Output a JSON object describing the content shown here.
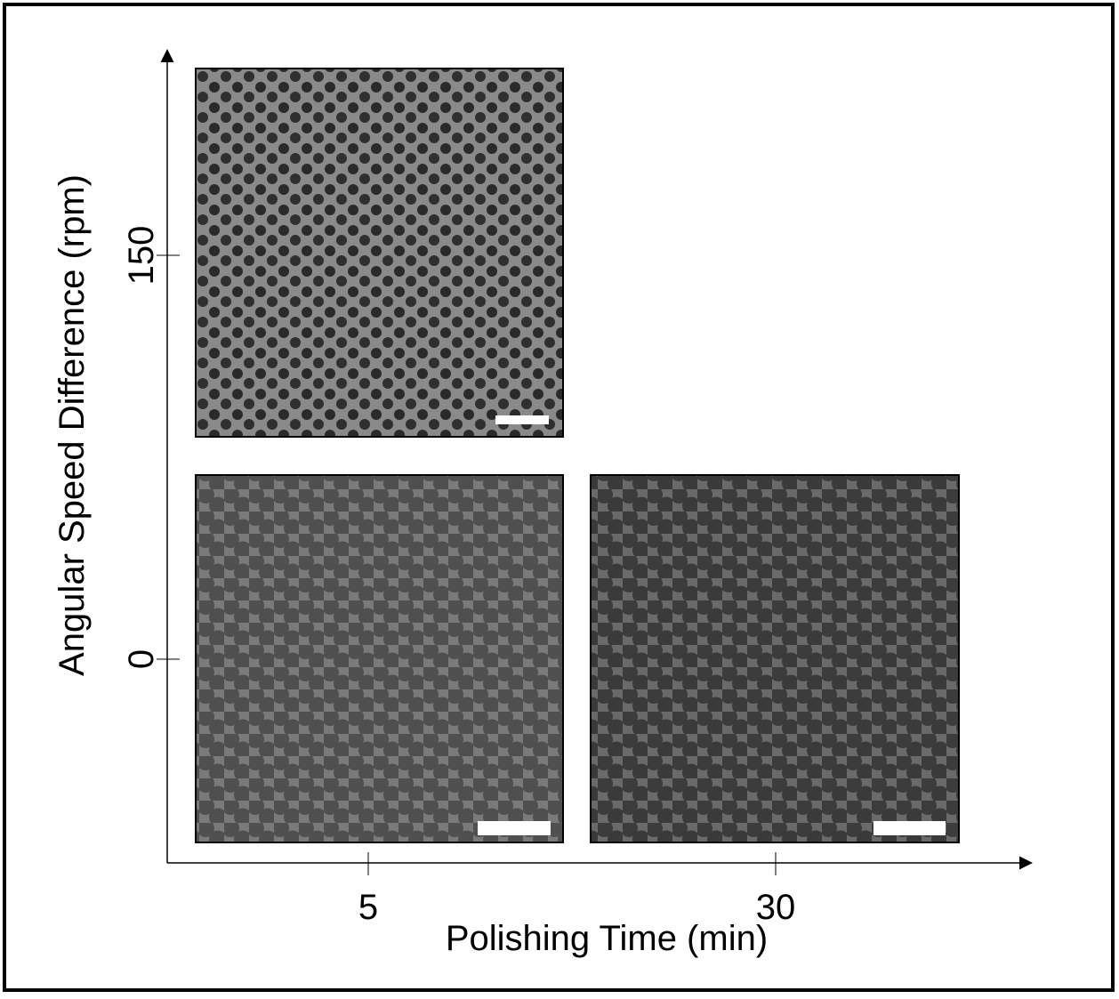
{
  "x_axis": {
    "label": "Polishing Time (min)",
    "ticks": [
      5,
      30
    ]
  },
  "y_axis": {
    "label": "Angular Speed Difference (rpm)",
    "ticks": [
      0,
      150
    ]
  }
}
